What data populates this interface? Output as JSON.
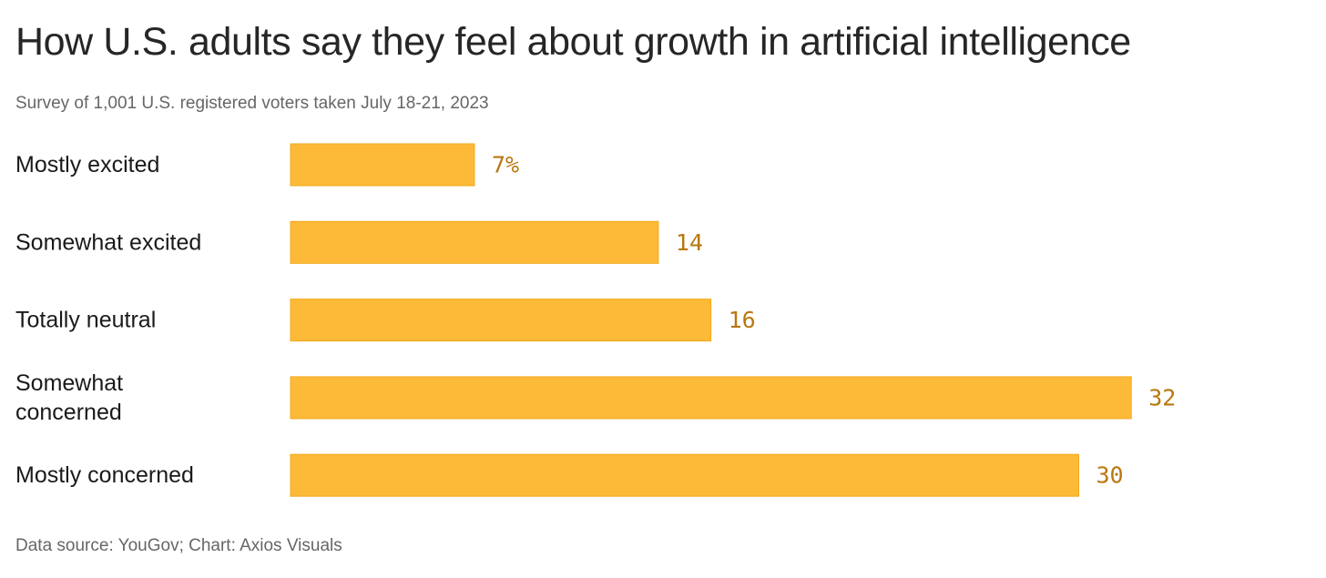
{
  "title": "How U.S. adults say they feel about growth in artificial intelligence",
  "subtitle": "Survey of 1,001 U.S. registered voters taken July 18-21, 2023",
  "source": "Data source: YouGov; Chart: Axios Visuals",
  "colors": {
    "bar": "#FDBA39",
    "bar_stroke": "#F2A91A",
    "value_label": "#B8780F"
  },
  "chart_data": {
    "type": "bar",
    "orientation": "horizontal",
    "title": "How U.S. adults say they feel about growth in artificial intelligence",
    "subtitle": "Survey of 1,001 U.S. registered voters taken July 18-21, 2023",
    "categories": [
      [
        "Mostly excited"
      ],
      [
        "Somewhat excited"
      ],
      [
        "Totally neutral"
      ],
      [
        "Somewhat",
        "concerned"
      ],
      [
        "Mostly concerned"
      ]
    ],
    "values": [
      7,
      14,
      16,
      32,
      30
    ],
    "value_labels": [
      "7%",
      "14",
      "16",
      "32",
      "30"
    ],
    "xlim": [
      0,
      35
    ],
    "grid": false,
    "legend": "none"
  }
}
